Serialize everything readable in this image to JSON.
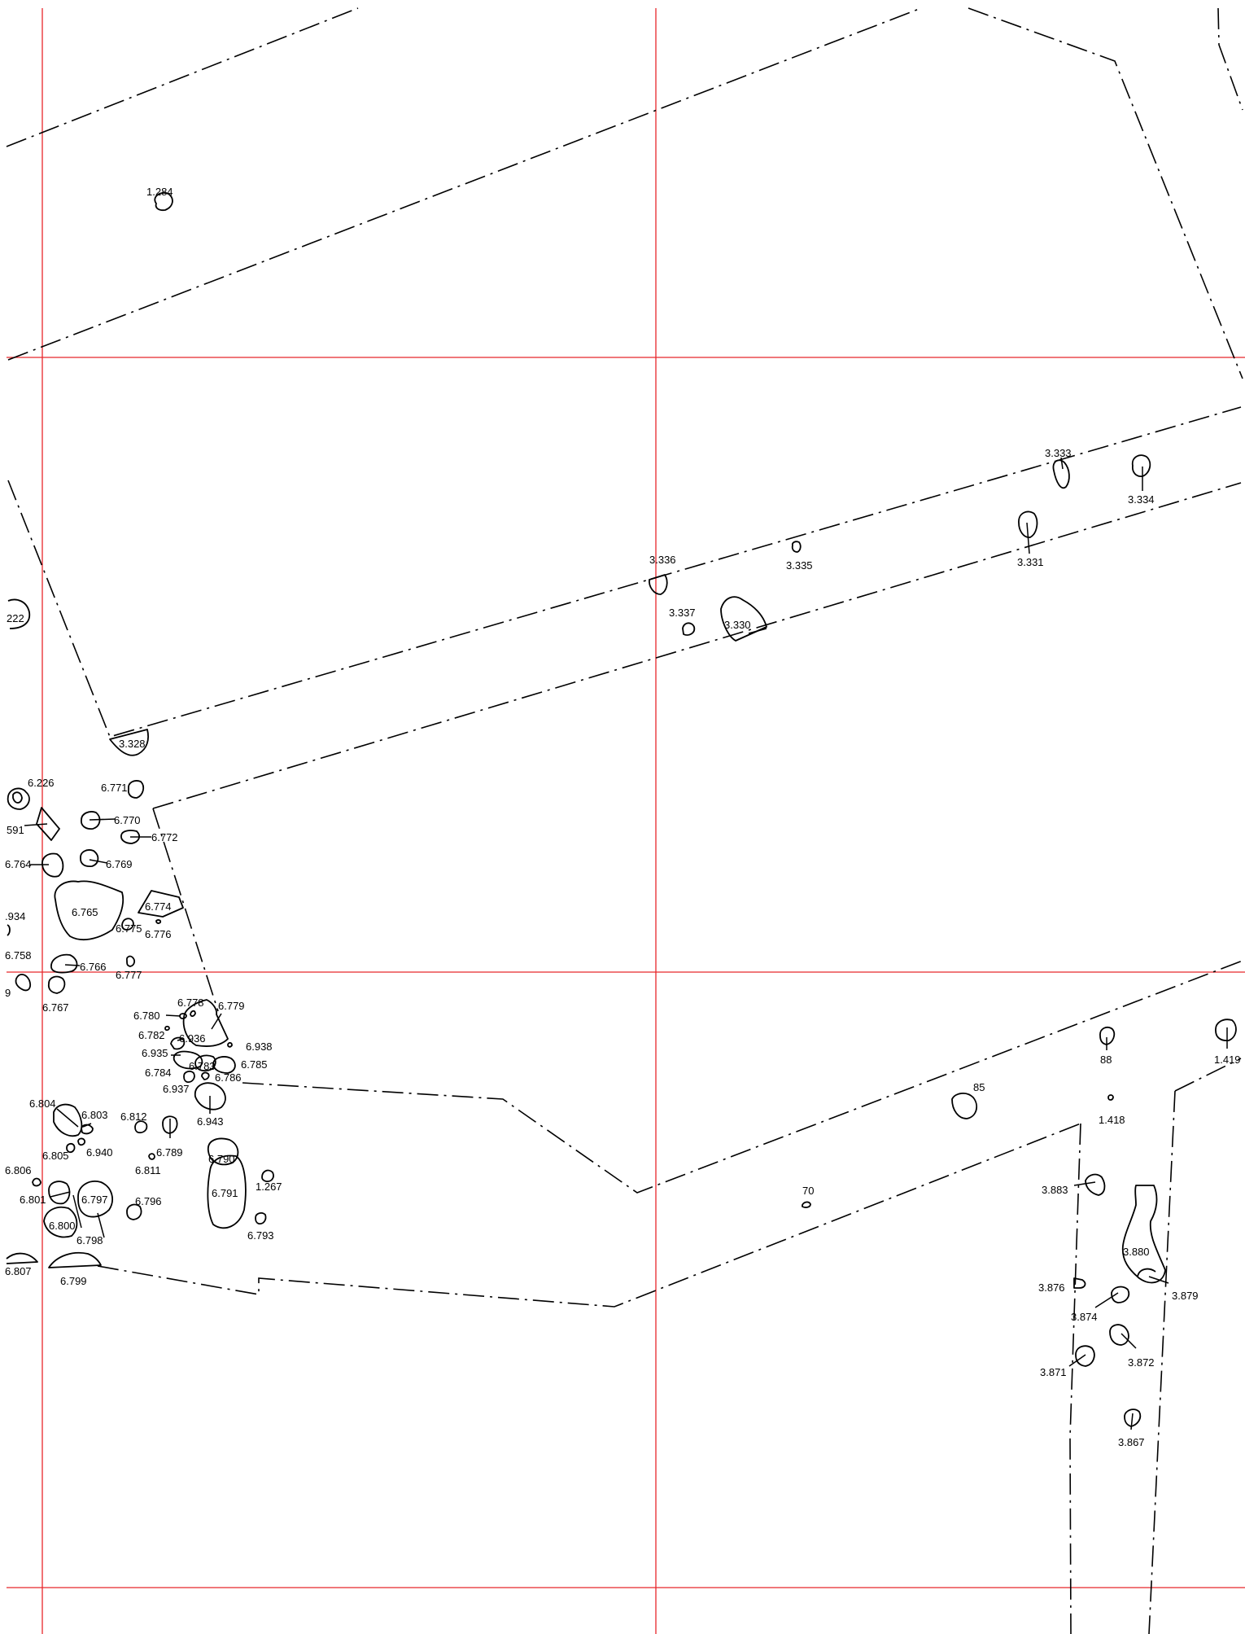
{
  "plan": {
    "grid_color": "#e8272b",
    "line_color": "#000000",
    "background": "#ffffff",
    "labels": [
      "1.284",
      "3.333",
      "3.334",
      "3.336",
      "3.335",
      "3.331",
      "3.337",
      "3.330",
      "222",
      "3.328",
      "6.226",
      "6.771",
      "591",
      "6.770",
      "6.772",
      "6.764",
      "6.769",
      "6.765",
      "6.774",
      ".934",
      "6.775",
      "6.776",
      "6.758",
      "6.766",
      "6.777",
      "9",
      "6.767",
      "6.778",
      "6.779",
      "6.780",
      "6.782",
      "6.936",
      "6.938",
      "6.935",
      "6.783",
      "6.785",
      "6.784",
      "6.786",
      "6.937",
      "6.804",
      "6.803",
      "6.812",
      "6.943",
      "6.805",
      "6.940",
      "6.789",
      "6.790",
      "6.806",
      "6.811",
      "1.267",
      "6.801",
      "6.797",
      "6.796",
      "6.791",
      "6.800",
      "6.798",
      "6.793",
      "6.807",
      "6.799",
      "88",
      "1.419",
      "85",
      "1.418",
      "70",
      "3.883",
      "3.880",
      "3.876",
      "3.879",
      "3.874",
      "3.871",
      "3.872",
      "3.867"
    ]
  }
}
